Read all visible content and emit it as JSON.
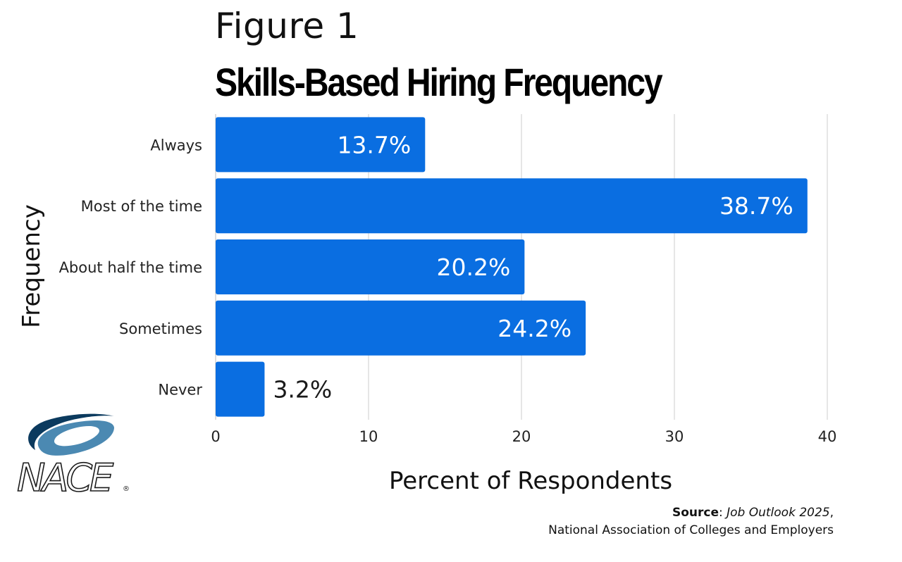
{
  "header": {
    "figure_label": "Figure 1",
    "title": "Skills-Based Hiring Frequency"
  },
  "chart_data": {
    "type": "bar",
    "orientation": "horizontal",
    "title": "Skills-Based Hiring Frequency",
    "xlabel": "Percent of Respondents",
    "ylabel": "Frequency",
    "categories": [
      "Always",
      "Most of the time",
      "About half the time",
      "Sometimes",
      "Never"
    ],
    "values": [
      13.7,
      38.7,
      20.2,
      24.2,
      3.2
    ],
    "value_labels": [
      "13.7%",
      "38.7%",
      "20.2%",
      "24.2%",
      "3.2%"
    ],
    "xlim": [
      0,
      40
    ],
    "xticks": [
      "0",
      "10",
      "20",
      "30",
      "40"
    ],
    "grid": "vertical",
    "legend": "none",
    "bar_color": "#0a6ee1",
    "label_color_inside": "#ffffff",
    "label_color_outside": "#1a1a1a",
    "gridline_color": "#cccccc"
  },
  "source": {
    "label": "Source",
    "separator": ": ",
    "publication": "Job Outlook 2025",
    "trailing": ",",
    "organization": "National Association of Colleges and Employers"
  },
  "logo": {
    "text": "NACE",
    "registered_mark": "®",
    "colors": {
      "swoosh_dark": "#0b3a5e",
      "swoosh_light": "#4b89b2",
      "text": "#1a1a1a"
    }
  }
}
